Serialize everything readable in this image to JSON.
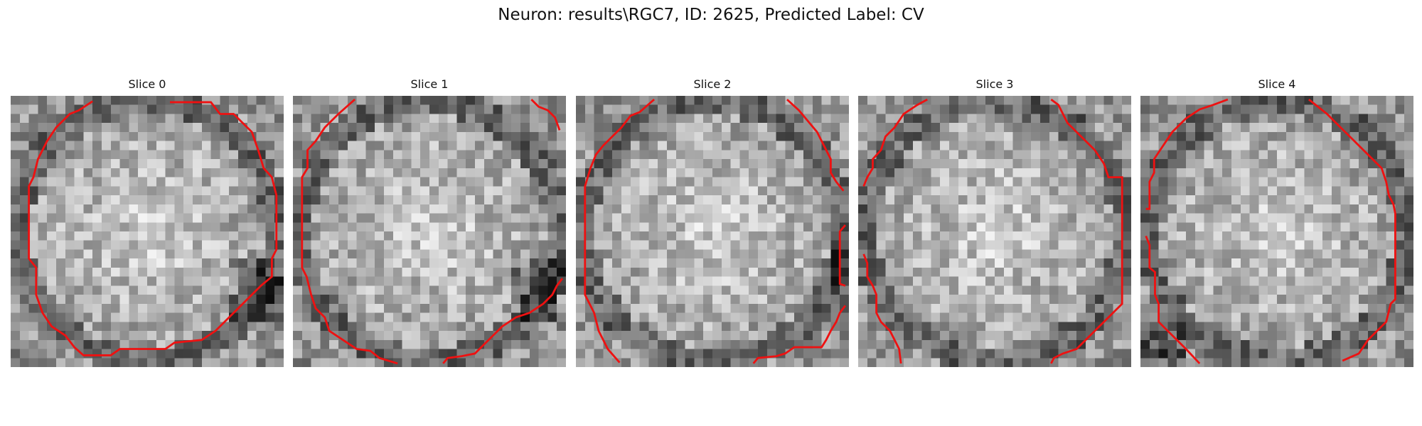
{
  "figure": {
    "title": "Neuron: results\\RGC7, ID: 2625, Predicted Label: CV"
  },
  "slices": [
    {
      "title": "Slice 0",
      "seed": 11,
      "dark_corner": "bottom-right"
    },
    {
      "title": "Slice 1",
      "seed": 23,
      "dark_corner": "bottom-right"
    },
    {
      "title": "Slice 2",
      "seed": 37,
      "dark_corner": "right"
    },
    {
      "title": "Slice 3",
      "seed": 41,
      "dark_corner": "none"
    },
    {
      "title": "Slice 4",
      "seed": 59,
      "dark_corner": "bottom-left"
    }
  ],
  "colors": {
    "contour": "#ee1111"
  }
}
